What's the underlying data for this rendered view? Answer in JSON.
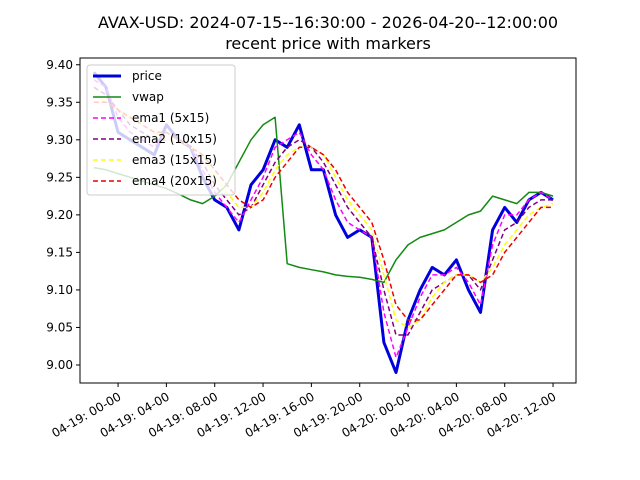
{
  "chart_data": {
    "type": "line",
    "title": "AVAX-USD: 2024-07-15--16:30:00 - 2026-04-20--12:00:00",
    "subtitle": "recent price with markers",
    "x": [
      -2,
      -1,
      0,
      1,
      2,
      3,
      4,
      5,
      6,
      7,
      8,
      9,
      10,
      11,
      12,
      13,
      14,
      15,
      16,
      17,
      18,
      19,
      20,
      21,
      22,
      23,
      24,
      25,
      26,
      27,
      28,
      29,
      30,
      31,
      32,
      33,
      34,
      35,
      36
    ],
    "xlim": [
      -3.15,
      37.9
    ],
    "xticks": [
      {
        "value": 0,
        "label": "04-19: 00-00"
      },
      {
        "value": 4,
        "label": "04-19: 04-00"
      },
      {
        "value": 8,
        "label": "04-19: 08-00"
      },
      {
        "value": 12,
        "label": "04-19: 12-00"
      },
      {
        "value": 16,
        "label": "04-19: 16-00"
      },
      {
        "value": 20,
        "label": "04-19: 20-00"
      },
      {
        "value": 24,
        "label": "04-20: 00-00"
      },
      {
        "value": 28,
        "label": "04-20: 04-00"
      },
      {
        "value": 32,
        "label": "04-20: 08-00"
      },
      {
        "value": 36,
        "label": "04-20: 12-00"
      }
    ],
    "ylim": [
      8.976,
      9.409
    ],
    "yticks": [
      {
        "value": 9.0,
        "label": "9.00"
      },
      9.05,
      {
        "value": 9.1,
        "label": "9.10"
      },
      9.15,
      {
        "value": 9.2,
        "label": "9.20"
      },
      9.25,
      {
        "value": 9.3,
        "label": "9.30"
      },
      9.35,
      {
        "value": 9.4,
        "label": "9.40"
      }
    ],
    "legend": "upper left",
    "series": [
      {
        "name": "price",
        "color": "#0000dd",
        "linewidth": 3,
        "linestyle": "solid",
        "values": [
          9.39,
          9.37,
          9.31,
          9.3,
          9.29,
          9.28,
          9.32,
          9.3,
          9.29,
          9.25,
          9.22,
          9.21,
          9.18,
          9.24,
          9.26,
          9.3,
          9.29,
          9.32,
          9.26,
          9.26,
          9.2,
          9.17,
          9.18,
          9.17,
          9.03,
          8.99,
          9.06,
          9.1,
          9.13,
          9.12,
          9.14,
          9.1,
          9.07,
          9.18,
          9.21,
          9.19,
          9.22,
          9.23,
          9.22
        ]
      },
      {
        "name": "vwap",
        "color": "#138a13",
        "linewidth": 1.5,
        "linestyle": "solid",
        "values": [
          9.263,
          9.26,
          9.255,
          9.25,
          9.245,
          9.24,
          9.235,
          9.228,
          9.22,
          9.215,
          9.225,
          9.24,
          9.27,
          9.3,
          9.32,
          9.33,
          9.135,
          9.13,
          9.127,
          9.124,
          9.12,
          9.118,
          9.117,
          9.114,
          9.11,
          9.14,
          9.16,
          9.17,
          9.175,
          9.18,
          9.19,
          9.2,
          9.205,
          9.225,
          9.22,
          9.215,
          9.23,
          9.23,
          9.225
        ]
      },
      {
        "name": "ema1 (5x15)",
        "color": "#ff00ff",
        "linewidth": 1.5,
        "linestyle": "dashed",
        "values": [
          9.38,
          9.37,
          9.33,
          9.31,
          9.3,
          9.29,
          9.31,
          9.3,
          9.29,
          9.26,
          9.23,
          9.21,
          9.19,
          9.22,
          9.25,
          9.29,
          9.3,
          9.31,
          9.28,
          9.26,
          9.22,
          9.19,
          9.18,
          9.17,
          9.07,
          9.01,
          9.05,
          9.09,
          9.12,
          9.12,
          9.13,
          9.11,
          9.08,
          9.16,
          9.2,
          9.2,
          9.22,
          9.23,
          9.22
        ]
      },
      {
        "name": "ema2 (10x15)",
        "color": "#800080",
        "linewidth": 1.5,
        "linestyle": "dashed",
        "values": [
          9.37,
          9.36,
          9.34,
          9.32,
          9.31,
          9.3,
          9.3,
          9.3,
          9.29,
          9.27,
          9.24,
          9.22,
          9.2,
          9.21,
          9.24,
          9.27,
          9.29,
          9.3,
          9.29,
          9.27,
          9.24,
          9.21,
          9.19,
          9.17,
          9.1,
          9.04,
          9.04,
          9.07,
          9.1,
          9.11,
          9.12,
          9.12,
          9.1,
          9.14,
          9.18,
          9.19,
          9.21,
          9.22,
          9.22
        ]
      },
      {
        "name": "ema3 (15x15)",
        "color": "#ffff00",
        "linewidth": 1.5,
        "linestyle": "dashed",
        "values": [
          9.36,
          9.35,
          9.34,
          9.33,
          9.32,
          9.31,
          9.3,
          9.3,
          9.29,
          9.28,
          9.25,
          9.23,
          9.21,
          9.21,
          9.23,
          9.26,
          9.28,
          9.29,
          9.29,
          9.28,
          9.25,
          9.22,
          9.2,
          9.18,
          9.12,
          9.06,
          9.05,
          9.06,
          9.09,
          9.11,
          9.12,
          9.12,
          9.11,
          9.13,
          9.16,
          9.18,
          9.2,
          9.21,
          9.215
        ]
      },
      {
        "name": "ema4 (20x15)",
        "color": "#ee0000",
        "linewidth": 1.5,
        "linestyle": "dashed",
        "values": [
          9.35,
          9.35,
          9.34,
          9.33,
          9.32,
          9.31,
          9.31,
          9.3,
          9.29,
          9.28,
          9.26,
          9.24,
          9.22,
          9.21,
          9.22,
          9.25,
          9.27,
          9.29,
          9.29,
          9.28,
          9.26,
          9.23,
          9.21,
          9.19,
          9.14,
          9.08,
          9.06,
          9.06,
          9.08,
          9.1,
          9.12,
          9.12,
          9.11,
          9.12,
          9.15,
          9.17,
          9.19,
          9.21,
          9.21
        ]
      }
    ]
  }
}
